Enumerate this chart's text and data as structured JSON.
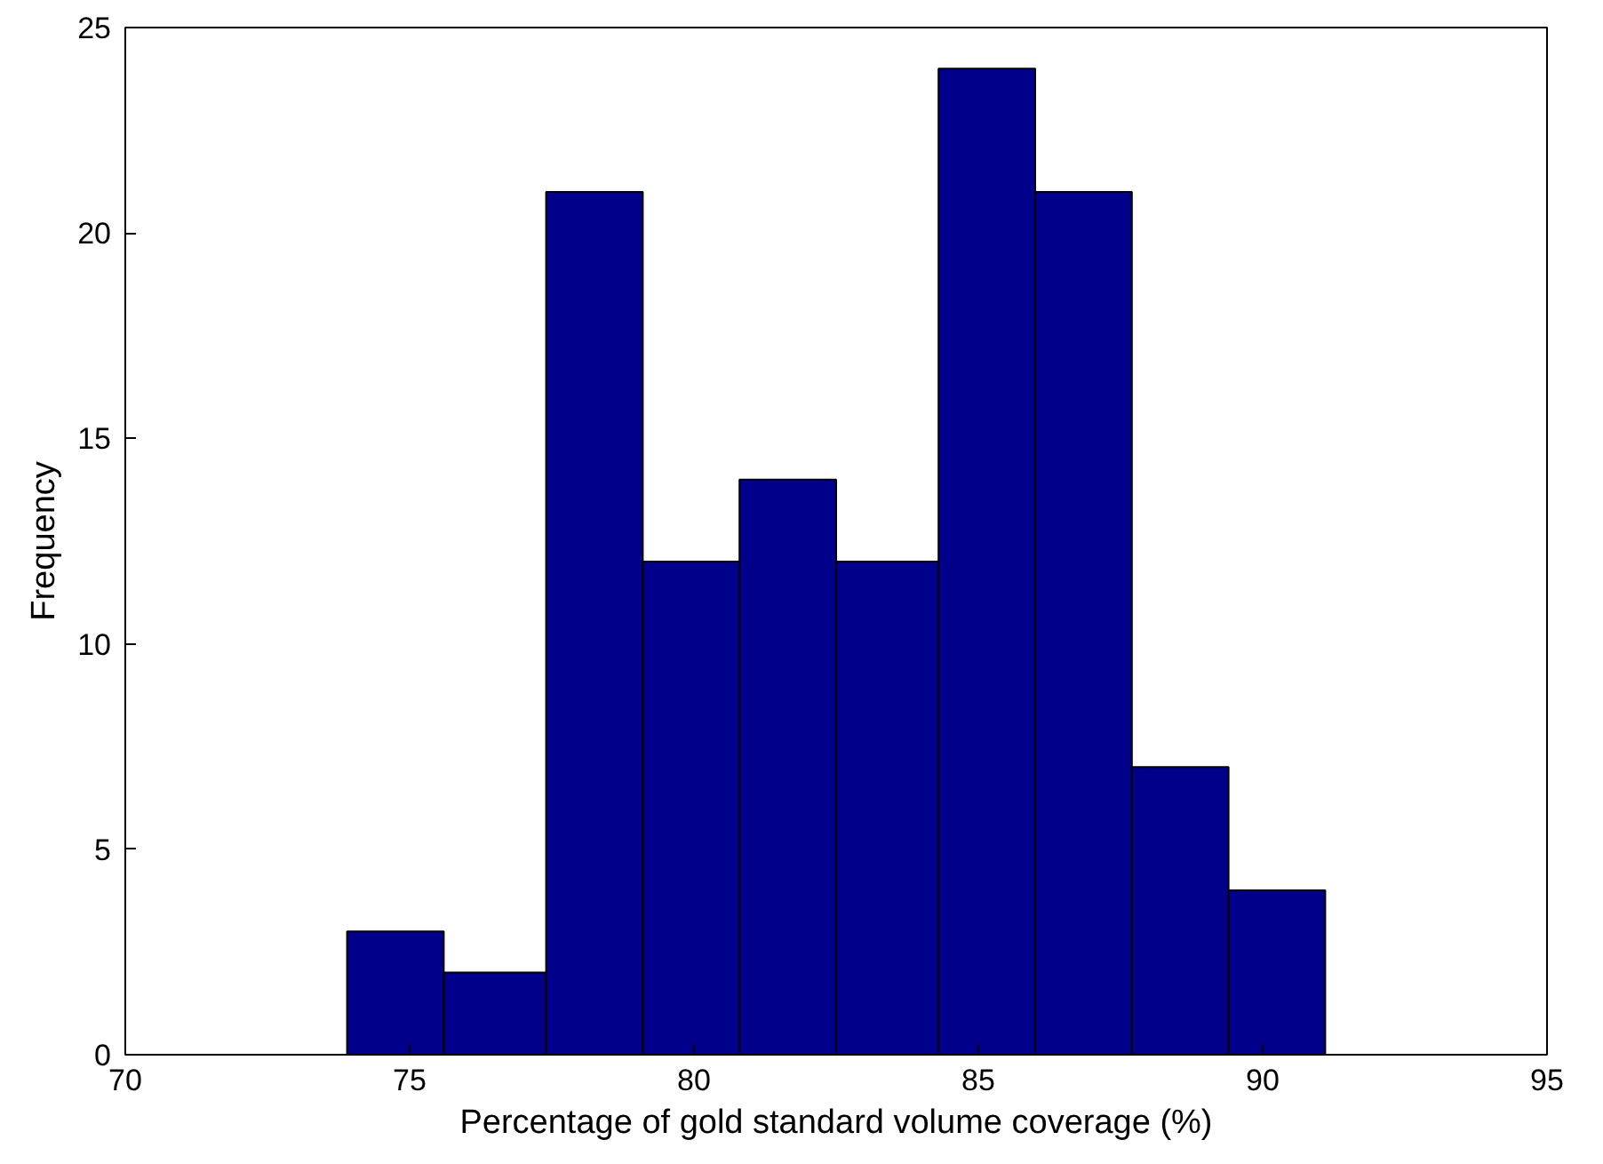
{
  "chart_data": {
    "type": "histogram",
    "xlabel": "Percentage of gold standard volume coverage (%)",
    "ylabel": "Frequency",
    "bins": [
      73.9,
      75.6,
      77.4,
      79.1,
      80.8,
      82.5,
      84.3,
      86.0,
      87.7,
      89.4,
      91.1
    ],
    "values": [
      3,
      2,
      21,
      12,
      14,
      12,
      24,
      21,
      7,
      4
    ],
    "color": "#00008b",
    "xlim": [
      70,
      95
    ],
    "xticks": [
      70,
      75,
      80,
      85,
      90,
      95
    ],
    "ylim": [
      0,
      25
    ],
    "yticks": [
      0,
      5,
      10,
      15,
      20,
      25
    ],
    "grid": false
  }
}
